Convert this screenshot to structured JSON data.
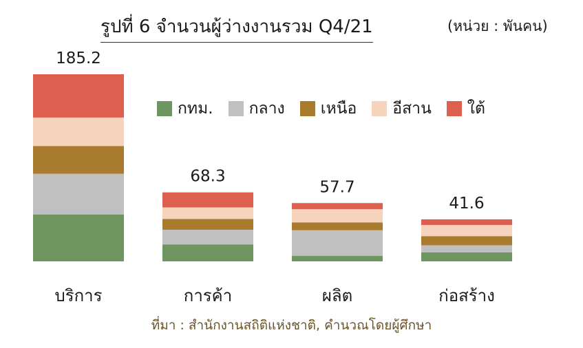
{
  "title": "รูปที่ 6  จำนวนผู้ว่างงานรวม Q4/21",
  "unit_note": "(หน่วย : พันคน)",
  "source": "ที่มา : สำนักงานสถิติแห่งชาติ, คำนวณโดยผู้ศึกษา",
  "colors": {
    "bangkok": "#6f9560",
    "central": "#c0c0c0",
    "north": "#a87b2f",
    "northeast": "#f6d3bd",
    "south": "#dd5f50"
  },
  "chart_data": {
    "type": "bar",
    "stacked": true,
    "title": "รูปที่ 6  จำนวนผู้ว่างงานรวม Q4/21",
    "subtitle": "(หน่วย : พันคน)",
    "categories": [
      "บริการ",
      "การค้า",
      "ผลิต",
      "ก่อสร้าง"
    ],
    "totals": [
      "185.2",
      "68.3",
      "57.7",
      "41.6"
    ],
    "series": [
      {
        "name": "กทม.",
        "color": "#6f9560",
        "values": [
          46.5,
          16.8,
          5.4,
          9.0
        ]
      },
      {
        "name": "กลาง",
        "color": "#c0c0c0",
        "values": [
          40.2,
          14.5,
          25.4,
          6.9
        ]
      },
      {
        "name": "เหนือ",
        "color": "#a87b2f",
        "values": [
          27.5,
          10.7,
          7.7,
          9.0
        ]
      },
      {
        "name": "อีสาน",
        "color": "#f6d3bd",
        "values": [
          28.2,
          11.4,
          13.1,
          11.1
        ]
      },
      {
        "name": "ใต้",
        "color": "#dd5f50",
        "values": [
          42.8,
          14.9,
          6.1,
          5.6
        ]
      }
    ],
    "ylim": [
      0,
      185.2
    ],
    "grid": false,
    "legend_position": "top-right"
  }
}
